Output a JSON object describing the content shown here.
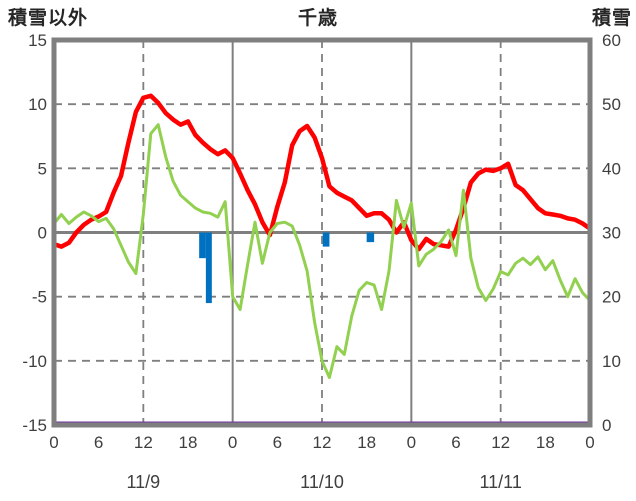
{
  "header": {
    "left_axis_title": "積雪以外",
    "chart_title": "千歳",
    "right_axis_title": "積雪"
  },
  "colors": {
    "red_line": "#FF0000",
    "green_line": "#92D050",
    "blue_bars": "#0070C0",
    "purple_line": "#7030A0",
    "grid": "#7F7F7F",
    "tick_text": "#3F3F3F",
    "header_text": "#262626",
    "background": "#FFFFFF"
  },
  "chart_data": {
    "type": "line",
    "title": "千歳",
    "x_unit": "hour",
    "x_range": [
      0,
      72
    ],
    "grid": "on",
    "legend": "none",
    "left_axis": {
      "title": "積雪以外",
      "min": -15,
      "max": 15,
      "ticks": [
        15,
        10,
        5,
        0,
        -5,
        -10,
        -15
      ]
    },
    "right_axis": {
      "title": "積雪",
      "min": 0,
      "max": 60,
      "ticks": [
        60,
        50,
        40,
        30,
        20,
        10,
        0
      ]
    },
    "x_ticks": [
      {
        "h": 0,
        "label": "0"
      },
      {
        "h": 6,
        "label": "6"
      },
      {
        "h": 12,
        "label": "12"
      },
      {
        "h": 18,
        "label": "18"
      },
      {
        "h": 24,
        "label": "0"
      },
      {
        "h": 30,
        "label": "6"
      },
      {
        "h": 36,
        "label": "12"
      },
      {
        "h": 42,
        "label": "18"
      },
      {
        "h": 48,
        "label": "0"
      },
      {
        "h": 54,
        "label": "6"
      },
      {
        "h": 60,
        "label": "12"
      },
      {
        "h": 66,
        "label": "18"
      },
      {
        "h": 72,
        "label": "0"
      }
    ],
    "date_labels": [
      {
        "h": 12,
        "label": "11/9"
      },
      {
        "h": 36,
        "label": "11/10"
      },
      {
        "h": 60,
        "label": "11/11"
      }
    ],
    "day_separators": [
      24,
      48
    ],
    "noon_gridlines": [
      12,
      36,
      60
    ],
    "series": [
      {
        "name": "red_line",
        "type": "line",
        "axis": "left",
        "color": "#FF0000",
        "width": 4.5,
        "values": [
          -0.9,
          -1.1,
          -0.8,
          0.0,
          0.6,
          1.0,
          1.25,
          1.6,
          3.1,
          4.4,
          7.0,
          9.4,
          10.5,
          10.65,
          10.1,
          9.3,
          8.8,
          8.4,
          8.65,
          7.6,
          7.0,
          6.5,
          6.1,
          6.4,
          5.8,
          4.6,
          3.3,
          2.2,
          0.8,
          -0.2,
          2.0,
          3.9,
          6.8,
          7.9,
          8.3,
          7.4,
          5.8,
          3.6,
          3.1,
          2.8,
          2.5,
          1.9,
          1.3,
          1.5,
          1.5,
          1.0,
          0.0,
          0.8,
          -0.6,
          -1.3,
          -0.5,
          -0.9,
          -1.0,
          -1.1,
          0.2,
          1.9,
          3.9,
          4.6,
          4.9,
          4.8,
          5.0,
          5.35,
          3.7,
          3.3,
          2.6,
          1.9,
          1.5,
          1.4,
          1.3,
          1.1,
          1.0,
          0.7,
          0.3
        ]
      },
      {
        "name": "green_line",
        "type": "line",
        "axis": "left",
        "color": "#92D050",
        "width": 3,
        "values": [
          0.7,
          1.4,
          0.7,
          1.2,
          1.6,
          1.3,
          0.85,
          1.1,
          0.3,
          -1.0,
          -2.3,
          -3.2,
          1.4,
          7.7,
          8.4,
          5.9,
          4.0,
          2.9,
          2.4,
          1.9,
          1.6,
          1.5,
          1.2,
          2.4,
          -5.0,
          -6.0,
          -2.5,
          0.8,
          -2.4,
          0.0,
          0.7,
          0.8,
          0.5,
          -1.0,
          -3.0,
          -7.0,
          -10.0,
          -11.3,
          -8.9,
          -9.5,
          -6.5,
          -4.5,
          -3.9,
          -4.1,
          -6.0,
          -3.0,
          2.5,
          0.4,
          2.3,
          -2.6,
          -1.7,
          -1.3,
          -0.7,
          0.2,
          -1.8,
          3.3,
          -2.0,
          -4.3,
          -5.3,
          -4.4,
          -3.05,
          -3.3,
          -2.4,
          -2.0,
          -2.5,
          -1.9,
          -2.9,
          -2.2,
          -3.7,
          -5.0,
          -3.6,
          -4.7,
          -5.3
        ]
      },
      {
        "name": "blue_bars",
        "type": "bar",
        "axis": "left",
        "color": "#0070C0",
        "bars": [
          {
            "h_start": 19.5,
            "h_end": 20.4,
            "value": -2.0
          },
          {
            "h_start": 20.4,
            "h_end": 21.2,
            "value": -5.5
          },
          {
            "h_start": 36.1,
            "h_end": 37.0,
            "value": -1.1
          },
          {
            "h_start": 42.0,
            "h_end": 43.0,
            "value": -0.75
          }
        ]
      },
      {
        "name": "snow_depth_line",
        "type": "constant-line",
        "axis": "right",
        "color": "#7030A0",
        "width": 3,
        "value": 0
      }
    ]
  }
}
